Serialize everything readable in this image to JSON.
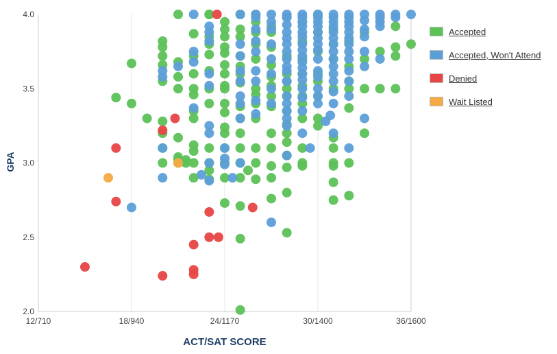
{
  "chart_data": {
    "type": "scatter",
    "title": "",
    "xlabel": "ACT/SAT SCORE",
    "ylabel": "GPA",
    "x_ticks": [
      "12/710",
      "18/940",
      "24/1170",
      "30/1400",
      "36/1600"
    ],
    "y_ticks": [
      "2.0",
      "2.5",
      "3.0",
      "3.5",
      "4.0"
    ],
    "xlim": [
      12,
      36
    ],
    "ylim": [
      2.0,
      4.0
    ],
    "grid": "vertical gridlines",
    "legend_position": "right",
    "series": [
      {
        "name": "Accepted",
        "color": "#5cc157",
        "points": [
          [
            18,
            3.67
          ],
          [
            19,
            3.3
          ],
          [
            20,
            3.82
          ],
          [
            20,
            3.78
          ],
          [
            20,
            3.72
          ],
          [
            20,
            3.66
          ],
          [
            20,
            3.55
          ],
          [
            20,
            3.28
          ],
          [
            20,
            3.2
          ],
          [
            20,
            3.1
          ],
          [
            20,
            3.0
          ],
          [
            17,
            3.44
          ],
          [
            18,
            3.4
          ],
          [
            21,
            3.68
          ],
          [
            21,
            3.58
          ],
          [
            21,
            3.5
          ],
          [
            21,
            3.17
          ],
          [
            21,
            3.04
          ],
          [
            21,
            3.02
          ],
          [
            21,
            3.0
          ],
          [
            21,
            4.0
          ],
          [
            21.5,
            3.02
          ],
          [
            21.5,
            3.0
          ],
          [
            22,
            3.87
          ],
          [
            22,
            3.72
          ],
          [
            22,
            3.6
          ],
          [
            22,
            3.5
          ],
          [
            22,
            3.46
          ],
          [
            22,
            3.35
          ],
          [
            22,
            3.3
          ],
          [
            22,
            3.12
          ],
          [
            22,
            3.08
          ],
          [
            22,
            3.0
          ],
          [
            22,
            2.9
          ],
          [
            23,
            4.0
          ],
          [
            23,
            3.85
          ],
          [
            23,
            3.8
          ],
          [
            23,
            3.73
          ],
          [
            23,
            3.62
          ],
          [
            23,
            3.5
          ],
          [
            23,
            3.4
          ],
          [
            23,
            3.1
          ],
          [
            23,
            3.0
          ],
          [
            23,
            2.95
          ],
          [
            23,
            2.89
          ],
          [
            23,
            4.0
          ],
          [
            24,
            3.95
          ],
          [
            24,
            3.9
          ],
          [
            24,
            3.85
          ],
          [
            24,
            3.78
          ],
          [
            24,
            3.74
          ],
          [
            24,
            3.66
          ],
          [
            24,
            3.6
          ],
          [
            24,
            3.52
          ],
          [
            24,
            3.5
          ],
          [
            24,
            3.4
          ],
          [
            24,
            3.34
          ],
          [
            24,
            3.24
          ],
          [
            24,
            3.2
          ],
          [
            24,
            3.1
          ],
          [
            24,
            3.0
          ],
          [
            24,
            2.9
          ],
          [
            24,
            2.73
          ],
          [
            25,
            4.0
          ],
          [
            25,
            3.9
          ],
          [
            25,
            3.85
          ],
          [
            25,
            3.72
          ],
          [
            25,
            3.65
          ],
          [
            25,
            3.6
          ],
          [
            25,
            3.54
          ],
          [
            25,
            3.38
          ],
          [
            25,
            3.3
          ],
          [
            25,
            3.2
          ],
          [
            25,
            3.1
          ],
          [
            25,
            3.0
          ],
          [
            25,
            2.9
          ],
          [
            25,
            2.71
          ],
          [
            25,
            2.49
          ],
          [
            25,
            2.01
          ],
          [
            25.5,
            2.95
          ],
          [
            26,
            4.0
          ],
          [
            26,
            3.95
          ],
          [
            26,
            3.88
          ],
          [
            26,
            3.8
          ],
          [
            26,
            3.7
          ],
          [
            26,
            3.5
          ],
          [
            26,
            3.46
          ],
          [
            26,
            3.4
          ],
          [
            26,
            3.3
          ],
          [
            26,
            3.1
          ],
          [
            26,
            3.0
          ],
          [
            26,
            2.89
          ],
          [
            27,
            3.92
          ],
          [
            27,
            3.88
          ],
          [
            27,
            3.78
          ],
          [
            27,
            3.66
          ],
          [
            27,
            3.58
          ],
          [
            27,
            3.52
          ],
          [
            27,
            3.45
          ],
          [
            27,
            3.38
          ],
          [
            27,
            3.2
          ],
          [
            27,
            3.1
          ],
          [
            27,
            2.98
          ],
          [
            27,
            2.9
          ],
          [
            27,
            2.76
          ],
          [
            28,
            3.98
          ],
          [
            28,
            3.72
          ],
          [
            28,
            3.6
          ],
          [
            28,
            3.55
          ],
          [
            28,
            3.5
          ],
          [
            28,
            3.45
          ],
          [
            28,
            3.35
          ],
          [
            28,
            3.26
          ],
          [
            28,
            3.2
          ],
          [
            28,
            3.14
          ],
          [
            28,
            3.05
          ],
          [
            28,
            2.97
          ],
          [
            28,
            2.8
          ],
          [
            28,
            2.53
          ],
          [
            29,
            3.95
          ],
          [
            29,
            3.82
          ],
          [
            29,
            3.7
          ],
          [
            29,
            3.6
          ],
          [
            29,
            3.52
          ],
          [
            29,
            3.45
          ],
          [
            29,
            3.4
          ],
          [
            29,
            3.3
          ],
          [
            29,
            3.0
          ],
          [
            29,
            2.98
          ],
          [
            29,
            3.1
          ],
          [
            30,
            4.0
          ],
          [
            30,
            3.88
          ],
          [
            30,
            3.75
          ],
          [
            30,
            3.6
          ],
          [
            30,
            3.55
          ],
          [
            30,
            3.45
          ],
          [
            30,
            3.3
          ],
          [
            30,
            3.25
          ],
          [
            31,
            3.9
          ],
          [
            31,
            3.8
          ],
          [
            31,
            3.7
          ],
          [
            31,
            3.5
          ],
          [
            31,
            3.17
          ],
          [
            31,
            3.1
          ],
          [
            31,
            3.0
          ],
          [
            31,
            2.98
          ],
          [
            31,
            2.87
          ],
          [
            31,
            2.75
          ],
          [
            32,
            3.82
          ],
          [
            32,
            3.65
          ],
          [
            32,
            3.55
          ],
          [
            32,
            3.5
          ],
          [
            32,
            3.37
          ],
          [
            32,
            3.0
          ],
          [
            32,
            2.78
          ],
          [
            33,
            3.88
          ],
          [
            33,
            3.7
          ],
          [
            33,
            3.5
          ],
          [
            33,
            3.2
          ],
          [
            34,
            3.75
          ],
          [
            34,
            3.5
          ],
          [
            35,
            3.92
          ],
          [
            35,
            3.78
          ],
          [
            35,
            3.72
          ],
          [
            35,
            3.5
          ],
          [
            36,
            3.8
          ]
        ]
      },
      {
        "name": "Accepted, Won't Attend",
        "color": "#5c9fd8",
        "points": [
          [
            18,
            2.7
          ],
          [
            20,
            3.62
          ],
          [
            20,
            3.58
          ],
          [
            20,
            3.1
          ],
          [
            20,
            2.9
          ],
          [
            21,
            3.65
          ],
          [
            22,
            4.0
          ],
          [
            22,
            3.75
          ],
          [
            22,
            3.68
          ],
          [
            22,
            3.37
          ],
          [
            23,
            3.92
          ],
          [
            23,
            3.88
          ],
          [
            23,
            3.82
          ],
          [
            23,
            3.6
          ],
          [
            23,
            3.52
          ],
          [
            23,
            3.25
          ],
          [
            23,
            3.2
          ],
          [
            23,
            3.0
          ],
          [
            22.5,
            2.92
          ],
          [
            23,
            2.88
          ],
          [
            24,
            3.1
          ],
          [
            24,
            3.03
          ],
          [
            24,
            2.99
          ],
          [
            24.5,
            2.9
          ],
          [
            25,
            4.0
          ],
          [
            25,
            3.8
          ],
          [
            25,
            3.72
          ],
          [
            25,
            3.62
          ],
          [
            25,
            3.55
          ],
          [
            25,
            3.45
          ],
          [
            25,
            3.4
          ],
          [
            25,
            3.3
          ],
          [
            25,
            3.0
          ],
          [
            26,
            4.0
          ],
          [
            26,
            3.98
          ],
          [
            26,
            3.9
          ],
          [
            26,
            3.82
          ],
          [
            26,
            3.75
          ],
          [
            26,
            3.62
          ],
          [
            26,
            3.55
          ],
          [
            26,
            3.42
          ],
          [
            26,
            3.33
          ],
          [
            27,
            4.0
          ],
          [
            27,
            3.95
          ],
          [
            27,
            3.9
          ],
          [
            27,
            3.8
          ],
          [
            27,
            3.7
          ],
          [
            27,
            3.6
          ],
          [
            27,
            3.5
          ],
          [
            27,
            3.4
          ],
          [
            27,
            2.6
          ],
          [
            28,
            4.0
          ],
          [
            28,
            3.98
          ],
          [
            28,
            3.93
          ],
          [
            28,
            3.88
          ],
          [
            28,
            3.84
          ],
          [
            28,
            3.8
          ],
          [
            28,
            3.75
          ],
          [
            28,
            3.7
          ],
          [
            28,
            3.65
          ],
          [
            28,
            3.62
          ],
          [
            28,
            3.55
          ],
          [
            28,
            3.45
          ],
          [
            28,
            3.4
          ],
          [
            28,
            3.35
          ],
          [
            28,
            3.3
          ],
          [
            28,
            3.25
          ],
          [
            28,
            3.05
          ],
          [
            29,
            4.0
          ],
          [
            29,
            3.98
          ],
          [
            29,
            3.95
          ],
          [
            29,
            3.92
          ],
          [
            29,
            3.88
          ],
          [
            29,
            3.85
          ],
          [
            29,
            3.8
          ],
          [
            29,
            3.76
          ],
          [
            29,
            3.72
          ],
          [
            29,
            3.68
          ],
          [
            29,
            3.64
          ],
          [
            29,
            3.6
          ],
          [
            29,
            3.56
          ],
          [
            29,
            3.5
          ],
          [
            29,
            3.44
          ],
          [
            29,
            3.35
          ],
          [
            29,
            3.2
          ],
          [
            29.5,
            3.1
          ],
          [
            30,
            4.0
          ],
          [
            30,
            3.98
          ],
          [
            30,
            3.95
          ],
          [
            30,
            3.92
          ],
          [
            30,
            3.88
          ],
          [
            30,
            3.84
          ],
          [
            30,
            3.8
          ],
          [
            30,
            3.76
          ],
          [
            30,
            3.7
          ],
          [
            30,
            3.62
          ],
          [
            30,
            3.58
          ],
          [
            30,
            3.5
          ],
          [
            30,
            3.45
          ],
          [
            30,
            3.4
          ],
          [
            31,
            4.0
          ],
          [
            31,
            3.98
          ],
          [
            31,
            3.95
          ],
          [
            31,
            3.92
          ],
          [
            31,
            3.88
          ],
          [
            31,
            3.84
          ],
          [
            31,
            3.8
          ],
          [
            31,
            3.75
          ],
          [
            31,
            3.7
          ],
          [
            31,
            3.65
          ],
          [
            31,
            3.6
          ],
          [
            31,
            3.55
          ],
          [
            31,
            3.48
          ],
          [
            31,
            3.4
          ],
          [
            31,
            3.2
          ],
          [
            32,
            4.0
          ],
          [
            32,
            3.98
          ],
          [
            32,
            3.95
          ],
          [
            32,
            3.92
          ],
          [
            32,
            3.88
          ],
          [
            32,
            3.84
          ],
          [
            32,
            3.8
          ],
          [
            32,
            3.75
          ],
          [
            32,
            3.7
          ],
          [
            32,
            3.62
          ],
          [
            32,
            3.55
          ],
          [
            32,
            3.45
          ],
          [
            32,
            3.1
          ],
          [
            33,
            4.0
          ],
          [
            33,
            3.96
          ],
          [
            33,
            3.9
          ],
          [
            33,
            3.85
          ],
          [
            33,
            3.75
          ],
          [
            33,
            3.65
          ],
          [
            33,
            3.3
          ],
          [
            34,
            4.0
          ],
          [
            34,
            3.98
          ],
          [
            34,
            3.95
          ],
          [
            34,
            3.92
          ],
          [
            34,
            3.7
          ],
          [
            35,
            4.0
          ],
          [
            35,
            3.98
          ],
          [
            36,
            4.0
          ],
          [
            30.5,
            3.28
          ],
          [
            30.8,
            3.32
          ]
        ]
      },
      {
        "name": "Denied",
        "color": "#e84545",
        "points": [
          [
            15,
            2.3
          ],
          [
            17,
            3.1
          ],
          [
            17,
            2.74
          ],
          [
            20,
            3.22
          ],
          [
            20,
            2.24
          ],
          [
            20.8,
            3.3
          ],
          [
            22,
            2.45
          ],
          [
            22,
            2.28
          ],
          [
            22,
            2.25
          ],
          [
            23,
            2.67
          ],
          [
            23,
            2.5
          ],
          [
            23.6,
            2.5
          ],
          [
            23.5,
            4.0
          ],
          [
            25.8,
            2.7
          ]
        ]
      },
      {
        "name": "Wait Listed",
        "color": "#f5aa46",
        "points": [
          [
            16.5,
            2.9
          ],
          [
            21,
            3.0
          ]
        ]
      }
    ]
  }
}
